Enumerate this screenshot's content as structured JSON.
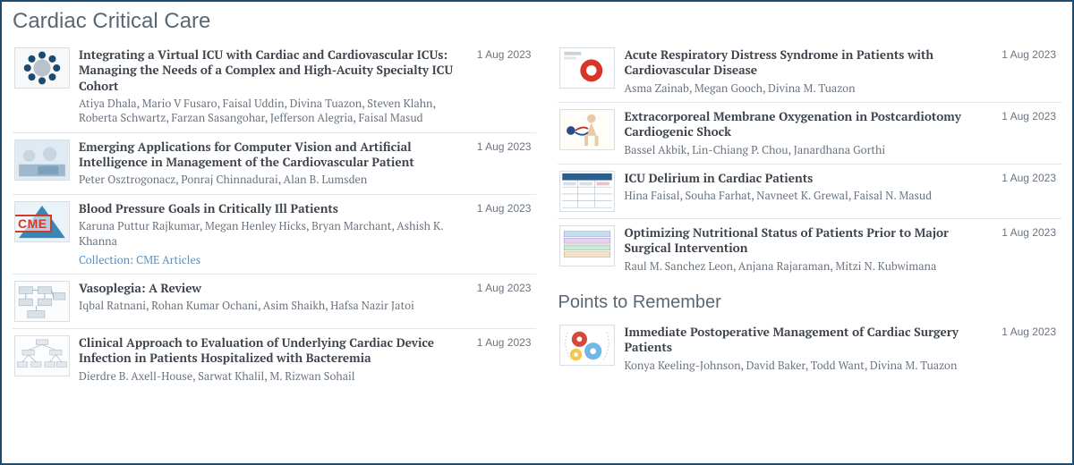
{
  "sections": {
    "main": {
      "title": "Cardiac Critical Care"
    },
    "points": {
      "title": "Points to Remember"
    }
  },
  "colors": {
    "border": "#1e4a6d",
    "heading": "#5a6772",
    "title": "#3d444d",
    "muted": "#6a7480",
    "link": "#5b8fbf",
    "divider": "#e2e6ea",
    "cme_red": "#d23a2a"
  },
  "left": [
    {
      "title": "Integrating a Virtual ICU with Cardiac and Cardiovascular ICUs: Managing the Needs of a Complex and High-Acuity Specialty ICU Cohort",
      "authors": "Atiya Dhala, Mario V Fusaro, Faisal Uddin, Divina Tuazon, Steven Klahn, Roberta Schwartz, Farzan Sasangohar, Jefferson Alegria, Faisal Masud",
      "date": "1 Aug 2023",
      "thumb": "circle-nodes"
    },
    {
      "title": "Emerging Applications for Computer Vision and Artificial Intelligence in Management of the Cardiovascular Patient",
      "authors": "Peter Osztrogonacz, Ponraj Chinnadurai, Alan B. Lumsden",
      "date": "1 Aug 2023",
      "thumb": "or-photo"
    },
    {
      "title": "Blood Pressure Goals in Critically Ill Patients",
      "authors": "Karuna Puttur Rajkumar, Megan Henley Hicks, Bryan Marchant, Ashish K. Khanna",
      "date": "1 Aug 2023",
      "collection": "Collection: CME Articles",
      "thumb": "cme-triangle"
    },
    {
      "title": "Vasoplegia: A Review",
      "authors": "Iqbal Ratnani, Rohan Kumar Ochani, Asim Shaikh, Hafsa Nazir Jatoi",
      "date": "1 Aug 2023",
      "thumb": "flow-boxes"
    },
    {
      "title": "Clinical Approach to Evaluation of Underlying Cardiac Device Infection in Patients Hospitalized with Bacteremia",
      "authors": "Dierdre B. Axell-House, Sarwat Khalil, M. Rizwan Sohail",
      "date": "1 Aug 2023",
      "thumb": "tree-diagram"
    }
  ],
  "right": [
    {
      "title": "Acute Respiratory Distress Syndrome in Patients with Cardiovascular Disease",
      "authors": "Asma Zainab, Megan Gooch, Divina M. Tuazon",
      "date": "1 Aug 2023",
      "thumb": "red-donut"
    },
    {
      "title": "Extracorporeal Membrane Oxygenation in Postcardiotomy Cardiogenic Shock",
      "authors": "Bassel Akbik, Lin-Chiang P. Chou, Janardhana Gorthi",
      "date": "1 Aug 2023",
      "thumb": "body-ecmo"
    },
    {
      "title": "ICU Delirium in Cardiac Patients",
      "authors": "Hina Faisal, Souha Farhat, Navneet K. Grewal, Faisal N. Masud",
      "date": "1 Aug 2023",
      "thumb": "table-grid"
    },
    {
      "title": "Optimizing Nutritional Status of Patients Prior to Major Surgical Intervention",
      "authors": "Raul M. Sanchez Leon, Anjana Rajaraman, Mitzi N. Kubwimana",
      "date": "1 Aug 2023",
      "thumb": "stacked-bars"
    }
  ],
  "points": [
    {
      "title": "Immediate Postoperative Management of Cardiac Surgery Patients",
      "authors": "Konya Keeling-Johnson, David Baker, Todd Want, Divina M. Tuazon",
      "date": "1 Aug 2023",
      "thumb": "gears"
    }
  ]
}
